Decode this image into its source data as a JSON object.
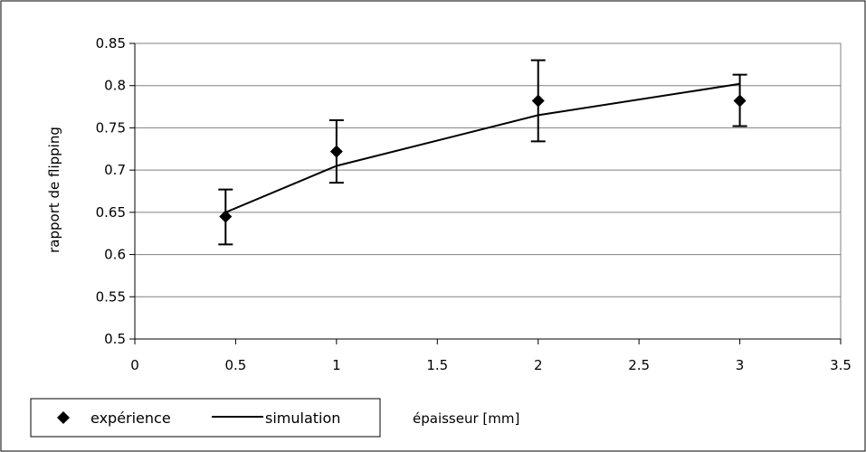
{
  "chart_data": {
    "type": "line",
    "xlabel": "épaisseur [mm]",
    "ylabel": "rapport de flipping",
    "xlim": [
      0,
      3.5
    ],
    "ylim": [
      0.5,
      0.85
    ],
    "x_ticks": [
      "0",
      "0.5",
      "1",
      "1.5",
      "2",
      "2.5",
      "3",
      "3.5"
    ],
    "y_ticks": [
      "0.5",
      "0.55",
      "0.6",
      "0.65",
      "0.7",
      "0.75",
      "0.8",
      "0.85"
    ],
    "grid": "horizontal",
    "legend_position": "bottom-left",
    "series": [
      {
        "name": "expérience",
        "kind": "scatter",
        "marker": "diamond",
        "color": "#000000",
        "points": [
          {
            "x": 0.45,
            "y": 0.645,
            "err_low": 0.612,
            "err_high": 0.677
          },
          {
            "x": 1.0,
            "y": 0.722,
            "err_low": 0.685,
            "err_high": 0.759
          },
          {
            "x": 2.0,
            "y": 0.782,
            "err_low": 0.734,
            "err_high": 0.83
          },
          {
            "x": 3.0,
            "y": 0.782,
            "err_low": 0.752,
            "err_high": 0.813
          }
        ]
      },
      {
        "name": "simulation",
        "kind": "line",
        "color": "#000000",
        "points": [
          {
            "x": 0.45,
            "y": 0.65
          },
          {
            "x": 1.0,
            "y": 0.705
          },
          {
            "x": 2.0,
            "y": 0.765
          },
          {
            "x": 3.0,
            "y": 0.802
          }
        ]
      }
    ]
  }
}
